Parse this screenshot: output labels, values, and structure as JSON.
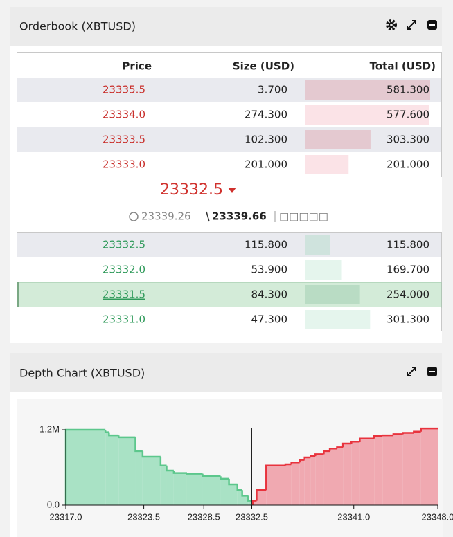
{
  "orderbook": {
    "title": "Orderbook (XBTUSD)",
    "columns": [
      "Price",
      "Size (USD)",
      "Total (USD)"
    ],
    "asks": {
      "prices": [
        "23335.5",
        "23334.0",
        "23333.5",
        "23333.0"
      ],
      "sizes": [
        "3.700",
        "274.300",
        "102.300",
        "201.000"
      ],
      "totals": [
        581.3,
        577.6,
        303.3,
        201
      ],
      "total_labels": [
        "581.300",
        "577.600",
        "303.300",
        "201.000"
      ]
    },
    "mid_price": "23332.5",
    "reference": {
      "index": "23339.26",
      "mark": "23339.66",
      "note": "□□□□□"
    },
    "bids": {
      "prices": [
        "23332.5",
        "23332.0",
        "23331.5",
        "23331.0"
      ],
      "sizes": [
        "115.800",
        "53.900",
        "84.300",
        "47.300"
      ],
      "totals": [
        115.8,
        169.7,
        254,
        301.3
      ],
      "total_labels": [
        "115.800",
        "169.700",
        "254.000",
        "301.300"
      ],
      "selected": 2
    }
  },
  "depth_chart": {
    "title": "Depth Chart (XBTUSD)",
    "chart": {
      "type": "step-area",
      "xlim": [
        23317,
        23348
      ],
      "xticks": [
        {
          "value": 23317,
          "label": "23317.0"
        },
        {
          "value": 23323.5,
          "label": "23323.5"
        },
        {
          "value": 23328.5,
          "label": "23328.5"
        },
        {
          "value": 23332.5,
          "label": "23332.5"
        },
        {
          "value": 23341,
          "label": "23341.0"
        },
        {
          "value": 23348,
          "label": "23348.0"
        }
      ],
      "ylim": [
        0,
        1200000
      ],
      "yticks": [
        {
          "value": 0,
          "label": "0.0"
        },
        {
          "value": 1200000,
          "label": "1.2M"
        }
      ],
      "series": [
        {
          "color": "#5cc78c",
          "fill": "#a9e2c5",
          "x": [
            23317.0,
            23320.3,
            23320.6,
            23321.4,
            23322.8,
            23323.4,
            23324.9,
            23325.4,
            23326.0,
            23327.1,
            23328.4,
            23329.9,
            23330.6,
            23331.3,
            23331.7,
            23332.2
          ],
          "values": [
            1200000,
            1160000,
            1110000,
            1080000,
            860000,
            770000,
            630000,
            550000,
            510000,
            500000,
            460000,
            420000,
            330000,
            240000,
            150000,
            70000
          ]
        },
        {
          "color": "#e8333d",
          "fill": "#f0a9b1",
          "x": [
            23332.6,
            23332.9,
            23333.7,
            23335.3,
            23335.8,
            23336.5,
            23336.9,
            23337.4,
            23337.8,
            23338.5,
            23339.0,
            23339.6,
            23340.1,
            23340.8,
            23341.5,
            23342.7,
            23343.4,
            23344.3,
            23345.1,
            23346.0,
            23346.6
          ],
          "values": [
            70000,
            240000,
            630000,
            650000,
            680000,
            720000,
            760000,
            780000,
            810000,
            860000,
            900000,
            920000,
            980000,
            1010000,
            1060000,
            1100000,
            1110000,
            1130000,
            1150000,
            1170000,
            1220000
          ]
        }
      ]
    }
  }
}
